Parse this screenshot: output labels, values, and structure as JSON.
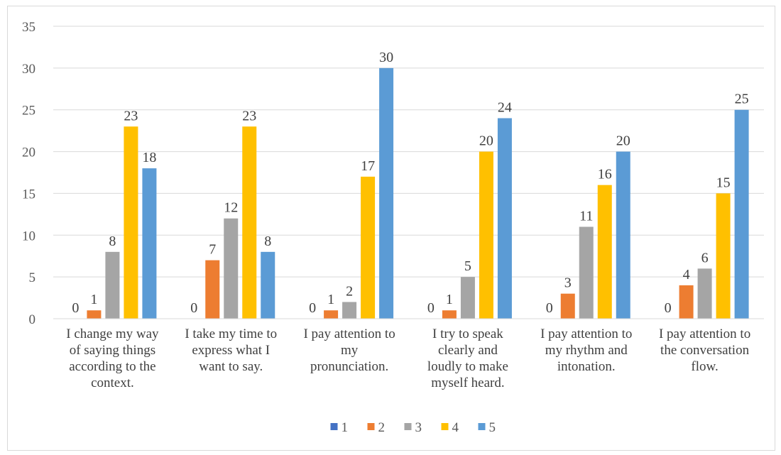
{
  "chart_data": {
    "type": "bar",
    "categories": [
      [
        "I change my way",
        "of saying things",
        "according to the",
        "context."
      ],
      [
        "I take my time to",
        "express what I",
        "want to say."
      ],
      [
        "I pay attention to",
        "my",
        "pronunciation."
      ],
      [
        "I try to speak",
        "clearly and",
        "loudly to make",
        "myself heard."
      ],
      [
        "I pay attention to",
        "my rhythm and",
        "intonation."
      ],
      [
        "I pay attention to",
        "the conversation",
        "flow."
      ]
    ],
    "series": [
      {
        "name": "1",
        "color": "#4472c4",
        "values": [
          0,
          0,
          0,
          0,
          0,
          0
        ]
      },
      {
        "name": "2",
        "color": "#ed7d31",
        "values": [
          1,
          7,
          1,
          1,
          3,
          4
        ]
      },
      {
        "name": "3",
        "color": "#a5a5a5",
        "values": [
          8,
          12,
          2,
          5,
          11,
          6
        ]
      },
      {
        "name": "4",
        "color": "#ffc000",
        "values": [
          23,
          23,
          17,
          20,
          16,
          15
        ]
      },
      {
        "name": "5",
        "color": "#5b9bd5",
        "values": [
          18,
          8,
          30,
          24,
          20,
          25
        ]
      }
    ],
    "ylim": [
      0,
      35
    ],
    "yticks": [
      0,
      5,
      10,
      15,
      20,
      25,
      30,
      35
    ],
    "grid": true,
    "legend": "bottom"
  }
}
